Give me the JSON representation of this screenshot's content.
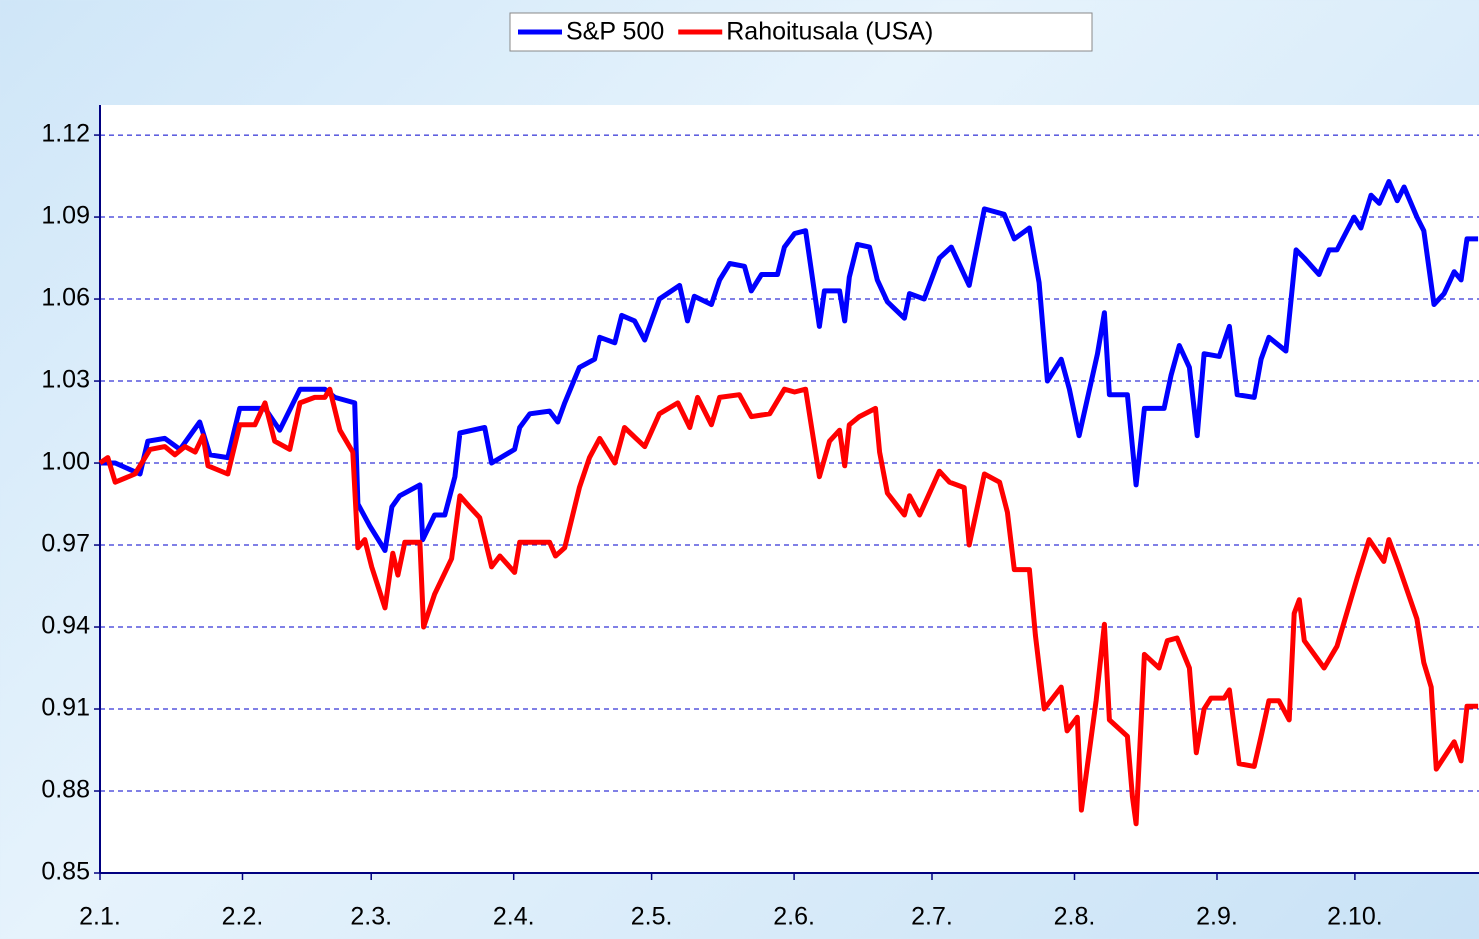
{
  "chart_data": {
    "type": "line",
    "xlim": [
      0,
      300
    ],
    "xticks": [
      {
        "value": 0,
        "label": "2.1."
      },
      {
        "value": 31,
        "label": "2.2."
      },
      {
        "value": 59,
        "label": "2.3."
      },
      {
        "value": 90,
        "label": "2.4."
      },
      {
        "value": 120,
        "label": "2.5."
      },
      {
        "value": 151,
        "label": "2.6."
      },
      {
        "value": 181,
        "label": "2.7."
      },
      {
        "value": 212,
        "label": "2.8."
      },
      {
        "value": 243,
        "label": "2.9."
      },
      {
        "value": 273,
        "label": "2.10."
      }
    ],
    "ylim": [
      0.85,
      1.131
    ],
    "yticks": [
      0.85,
      0.88,
      0.91,
      0.94,
      0.97,
      {
        "value": 1,
        "label": "1.00"
      },
      1.03,
      1.06,
      1.09,
      1.12
    ],
    "grid": true,
    "legend": "top",
    "series": [
      {
        "name": "S&P 500",
        "color": "#0000ff",
        "x": [
          0,
          3.3,
          8.7,
          10.4,
          14.1,
          17.4,
          21.7,
          23.9,
          27.8,
          30.4,
          35.9,
          39.1,
          43.5,
          48.9,
          51.1,
          55.4,
          56.1,
          58.7,
          62,
          63.5,
          65.2,
          69.6,
          70.2,
          72.8,
          75,
          77.2,
          78.3,
          83.7,
          85.2,
          90.2,
          91.3,
          93.5,
          97.8,
          99.6,
          101.1,
          104.3,
          107.6,
          108.7,
          112,
          113.5,
          116.3,
          118.5,
          121.7,
          126.1,
          127.8,
          129.3,
          133,
          134.8,
          137,
          140.2,
          141.7,
          143.9,
          147.4,
          148.9,
          151.1,
          153.5,
          156.5,
          157.6,
          160.9,
          162,
          163,
          164.8,
          167.4,
          169.1,
          171.3,
          175,
          176.1,
          179.3,
          182.6,
          185.2,
          189.1,
          192.4,
          196.7,
          198.9,
          202.2,
          204.3,
          206.1,
          209.1,
          210.9,
          213,
          217,
          218.5,
          219.6,
          223.5,
          225.4,
          227.2,
          231.5,
          233,
          234.8,
          237,
          238.7,
          240.2,
          243.5,
          245.7,
          247.4,
          251.1,
          252.6,
          254.3,
          258,
          260.2,
          262,
          265.2,
          267.4,
          269.1,
          272.8,
          274.3,
          276.5,
          278.3,
          280.4,
          282.2,
          283.7,
          286.5,
          288,
          290.2,
          292.4,
          294.6,
          296.1,
          297.4,
          299.8
        ],
        "values": [
          1.0,
          1.0,
          0.996,
          1.008,
          1.009,
          1.005,
          1.015,
          1.003,
          1.002,
          1.02,
          1.02,
          1.012,
          1.027,
          1.027,
          1.024,
          1.022,
          0.985,
          0.977,
          0.968,
          0.984,
          0.988,
          0.992,
          0.972,
          0.981,
          0.981,
          0.995,
          1.011,
          1.013,
          1.0,
          1.005,
          1.013,
          1.018,
          1.019,
          1.015,
          1.022,
          1.035,
          1.038,
          1.046,
          1.044,
          1.054,
          1.052,
          1.045,
          1.06,
          1.065,
          1.052,
          1.061,
          1.058,
          1.067,
          1.073,
          1.072,
          1.063,
          1.069,
          1.069,
          1.079,
          1.084,
          1.085,
          1.05,
          1.063,
          1.063,
          1.052,
          1.068,
          1.08,
          1.079,
          1.067,
          1.059,
          1.053,
          1.062,
          1.06,
          1.075,
          1.079,
          1.065,
          1.093,
          1.091,
          1.082,
          1.086,
          1.066,
          1.03,
          1.038,
          1.027,
          1.01,
          1.04,
          1.055,
          1.025,
          1.025,
          0.992,
          1.02,
          1.02,
          1.032,
          1.043,
          1.035,
          1.01,
          1.04,
          1.039,
          1.05,
          1.025,
          1.024,
          1.038,
          1.046,
          1.041,
          1.078,
          1.075,
          1.069,
          1.078,
          1.078,
          1.09,
          1.086,
          1.098,
          1.095,
          1.103,
          1.096,
          1.101,
          1.09,
          1.085,
          1.058,
          1.062,
          1.07,
          1.067,
          1.082,
          1.082
        ]
      },
      {
        "name": "Rahoitusala (USA)",
        "color": "#ff0000",
        "x": [
          0,
          1.7,
          3.3,
          7.6,
          10.9,
          14.1,
          16.3,
          18.5,
          20.7,
          22.4,
          23.5,
          27.8,
          30.4,
          33.7,
          35.9,
          38,
          41.3,
          43.5,
          46.7,
          48.9,
          50,
          52.2,
          55,
          56.1,
          57.6,
          59.1,
          62,
          63.7,
          64.8,
          66.3,
          69.6,
          70.4,
          72.8,
          76.5,
          78.3,
          80.4,
          82.6,
          85.2,
          87,
          90.2,
          91.3,
          93.5,
          97.8,
          99.1,
          101.1,
          104.3,
          106.5,
          108.7,
          112,
          114.1,
          118.5,
          121.7,
          125.7,
          128.3,
          130,
          133,
          134.8,
          139.1,
          141.7,
          145.7,
          148.9,
          151.1,
          153.5,
          154.8,
          156.5,
          158.7,
          160.9,
          162,
          163,
          165.2,
          168.7,
          169.6,
          171.3,
          175,
          176.1,
          178.3,
          182.6,
          184.8,
          188,
          189.1,
          192.4,
          195.7,
          197.4,
          198.9,
          202.2,
          203.5,
          205.4,
          209.1,
          210.4,
          212.6,
          213.5,
          216.7,
          218.5,
          219.6,
          223.5,
          224.6,
          225.4,
          227.2,
          230.4,
          232.2,
          234.3,
          237,
          238.5,
          240.2,
          241.7,
          244.6,
          245.7,
          247.8,
          251.1,
          252.6,
          254.3,
          256.5,
          258.7,
          259.8,
          260.9,
          262,
          266.3,
          269.1,
          273.5,
          276.1,
          279.3,
          280.4,
          282.6,
          286.5,
          288,
          289.6,
          290.7,
          294.6,
          296.1,
          297.4,
          299.8
        ],
        "values": [
          1.0,
          1.002,
          0.993,
          0.996,
          1.005,
          1.006,
          1.003,
          1.006,
          1.004,
          1.01,
          0.999,
          0.996,
          1.014,
          1.014,
          1.022,
          1.008,
          1.005,
          1.022,
          1.024,
          1.024,
          1.027,
          1.012,
          1.004,
          0.969,
          0.972,
          0.962,
          0.947,
          0.967,
          0.959,
          0.971,
          0.971,
          0.94,
          0.952,
          0.965,
          0.988,
          0.984,
          0.98,
          0.962,
          0.966,
          0.96,
          0.971,
          0.971,
          0.971,
          0.966,
          0.969,
          0.991,
          1.002,
          1.009,
          1.0,
          1.013,
          1.006,
          1.018,
          1.022,
          1.013,
          1.024,
          1.014,
          1.024,
          1.025,
          1.017,
          1.018,
          1.027,
          1.026,
          1.027,
          1.013,
          0.995,
          1.008,
          1.012,
          0.999,
          1.014,
          1.017,
          1.02,
          1.004,
          0.989,
          0.981,
          0.988,
          0.981,
          0.997,
          0.993,
          0.991,
          0.97,
          0.996,
          0.993,
          0.982,
          0.961,
          0.961,
          0.937,
          0.91,
          0.918,
          0.902,
          0.907,
          0.873,
          0.913,
          0.941,
          0.906,
          0.9,
          0.878,
          0.868,
          0.93,
          0.925,
          0.935,
          0.936,
          0.925,
          0.894,
          0.91,
          0.914,
          0.914,
          0.917,
          0.89,
          0.889,
          0.9,
          0.913,
          0.913,
          0.906,
          0.945,
          0.95,
          0.935,
          0.925,
          0.933,
          0.958,
          0.972,
          0.964,
          0.972,
          0.962,
          0.943,
          0.927,
          0.918,
          0.888,
          0.898,
          0.891,
          0.911,
          0.911
        ]
      }
    ]
  }
}
